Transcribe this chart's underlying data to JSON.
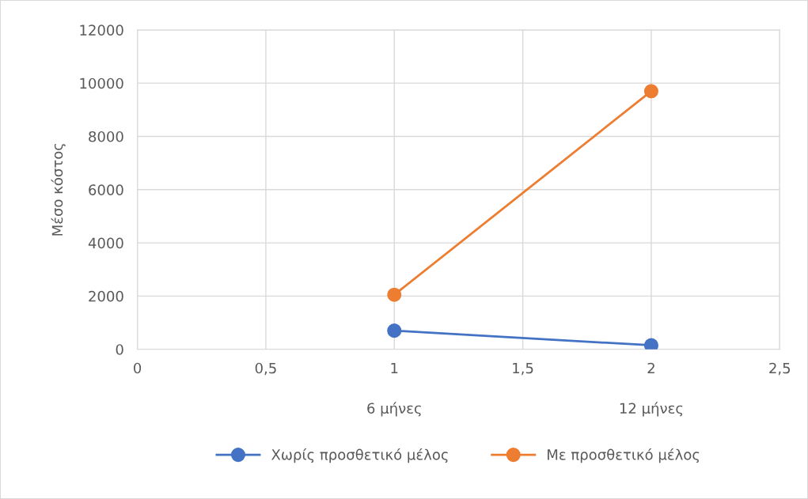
{
  "chart_data": {
    "type": "line",
    "ylabel": "Μέσο κόστος",
    "x": [
      1,
      2
    ],
    "series": [
      {
        "name": "Χωρίς προσθετικό μέλος",
        "color": "#4472c4",
        "values": [
          700,
          150
        ]
      },
      {
        "name": "Με προσθετικό μέλος",
        "color": "#ed7d31",
        "values": [
          2050,
          9700
        ]
      }
    ],
    "xlim": [
      0,
      2.5
    ],
    "xticks": [
      0,
      {
        "value": 0.5,
        "label": "0,5"
      },
      1,
      {
        "value": 1.5,
        "label": "1,5"
      },
      2,
      {
        "value": 2.5,
        "label": "2,5"
      }
    ],
    "ylim": [
      0,
      12000
    ],
    "yticks": [
      0,
      2000,
      4000,
      6000,
      8000,
      10000,
      12000
    ],
    "annotations": [
      "6 μήνες",
      "12 μήνες"
    ],
    "grid": true,
    "legend": "bottom",
    "marker": "circle",
    "line_style": "solid"
  }
}
